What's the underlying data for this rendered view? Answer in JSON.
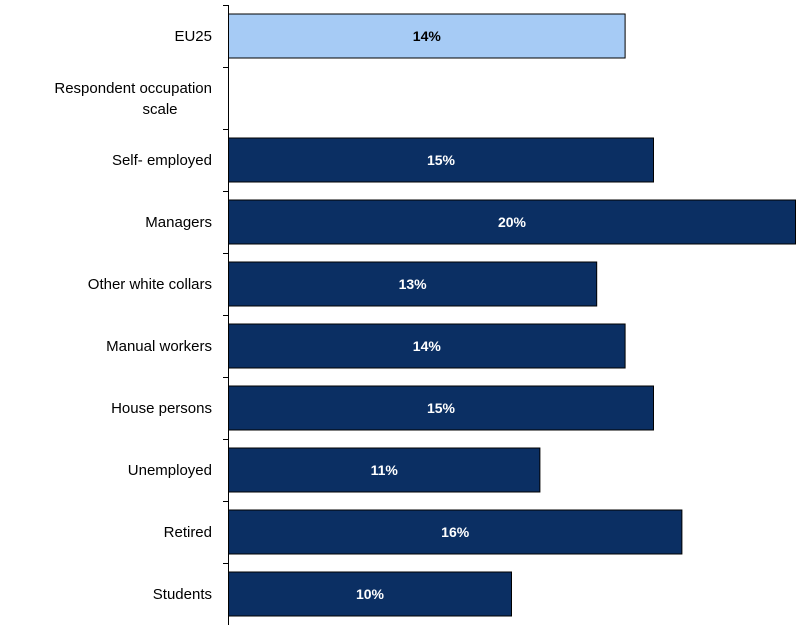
{
  "chart_data": {
    "type": "bar",
    "orientation": "horizontal",
    "categories": [
      "EU25",
      "Respondent occupation scale",
      "Self- employed",
      "Managers",
      "Other white collars",
      "Manual workers",
      "House persons",
      "Unemployed",
      "Retired",
      "Students"
    ],
    "values": [
      14,
      null,
      15,
      20,
      13,
      14,
      15,
      11,
      16,
      10
    ],
    "data_labels": [
      "14%",
      "",
      "15%",
      "20%",
      "13%",
      "14%",
      "15%",
      "11%",
      "16%",
      "10%"
    ],
    "title": "",
    "xlabel": "",
    "ylabel": "",
    "xlim": [
      0,
      20
    ],
    "grid": false,
    "legend": "none",
    "colors": {
      "highlight": "#a6cbf5",
      "default": "#0b2f63",
      "edge": "#000000"
    },
    "highlight_index": 0
  }
}
